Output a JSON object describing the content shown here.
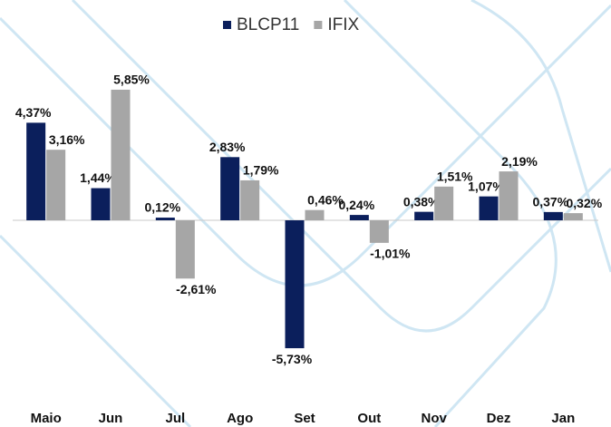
{
  "chart_data": {
    "type": "bar",
    "categories": [
      "Maio",
      "Jun",
      "Jul",
      "Ago",
      "Set",
      "Out",
      "Nov",
      "Dez",
      "Jan"
    ],
    "series": [
      {
        "name": "BLCP11",
        "color": "#0b1f5c",
        "values": [
          4.37,
          1.44,
          0.12,
          2.83,
          -5.73,
          0.24,
          0.38,
          1.07,
          0.37
        ],
        "value_labels": [
          "4,37%",
          "1,44%",
          "0,12%",
          "2,83%",
          "-5,73%",
          "0,24%",
          "0,38%",
          "1,07%",
          "0,37%"
        ]
      },
      {
        "name": "IFIX",
        "color": "#a6a6a6",
        "values": [
          3.16,
          5.85,
          -2.61,
          1.79,
          0.46,
          -1.01,
          1.51,
          2.19,
          0.32
        ],
        "value_labels": [
          "3,16%",
          "5,85%",
          "-2,61%",
          "1,79%",
          "0,46%",
          "-1,01%",
          "1,51%",
          "2,19%",
          "0,32%"
        ]
      }
    ],
    "ylim": [
      -8,
      8
    ],
    "legend": "top"
  }
}
